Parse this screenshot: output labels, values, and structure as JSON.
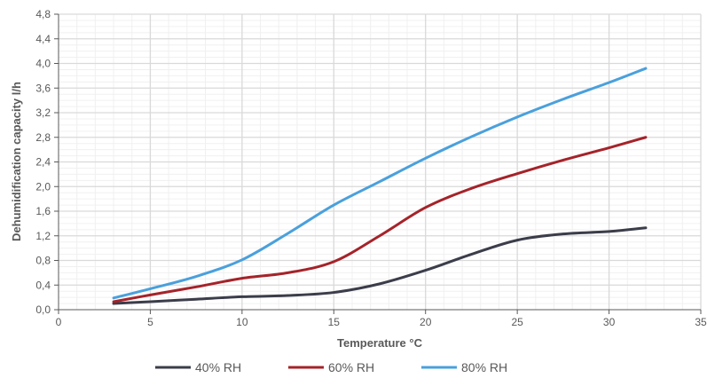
{
  "chart_data": {
    "type": "line",
    "title": "",
    "xlabel": "Temperature °C",
    "ylabel": "Dehumidification capacity l/h",
    "xlim": [
      0,
      35
    ],
    "ylim": [
      0,
      4.8
    ],
    "x_ticks": [
      0,
      5,
      10,
      15,
      20,
      25,
      30,
      35
    ],
    "y_ticks": [
      0.0,
      0.4,
      0.8,
      1.2,
      1.6,
      2.0,
      2.4,
      2.8,
      3.2,
      3.6,
      4.0,
      4.4,
      4.8
    ],
    "x_tick_labels": [
      "0",
      "5",
      "10",
      "15",
      "20",
      "25",
      "30",
      "35"
    ],
    "y_tick_labels": [
      "0,0",
      "0,4",
      "0,8",
      "1,2",
      "1,6",
      "2,0",
      "2,4",
      "2,8",
      "3,2",
      "3,6",
      "4,0",
      "4,4",
      "4,8"
    ],
    "grid": true,
    "legend_position": "bottom",
    "series": [
      {
        "name": "40% RH",
        "color": "#3b3d4a",
        "x": [
          3,
          5,
          7.5,
          10,
          12.5,
          15,
          17.5,
          20,
          22.5,
          25,
          27.5,
          30,
          32
        ],
        "values": [
          0.1,
          0.13,
          0.17,
          0.21,
          0.23,
          0.28,
          0.42,
          0.64,
          0.9,
          1.13,
          1.23,
          1.27,
          1.33
        ]
      },
      {
        "name": "60% RH",
        "color": "#a5232a",
        "x": [
          3,
          5,
          7.5,
          10,
          12.5,
          15,
          17.5,
          20,
          22.5,
          25,
          27.5,
          30,
          32
        ],
        "values": [
          0.13,
          0.24,
          0.37,
          0.51,
          0.6,
          0.78,
          1.2,
          1.66,
          1.97,
          2.21,
          2.43,
          2.63,
          2.8
        ]
      },
      {
        "name": "80% RH",
        "color": "#4aa0dc",
        "x": [
          3,
          5,
          7.5,
          10,
          12.5,
          15,
          17.5,
          20,
          22.5,
          25,
          27.5,
          30,
          32
        ],
        "values": [
          0.19,
          0.34,
          0.54,
          0.81,
          1.24,
          1.7,
          2.08,
          2.46,
          2.81,
          3.13,
          3.42,
          3.69,
          3.92
        ]
      }
    ]
  }
}
